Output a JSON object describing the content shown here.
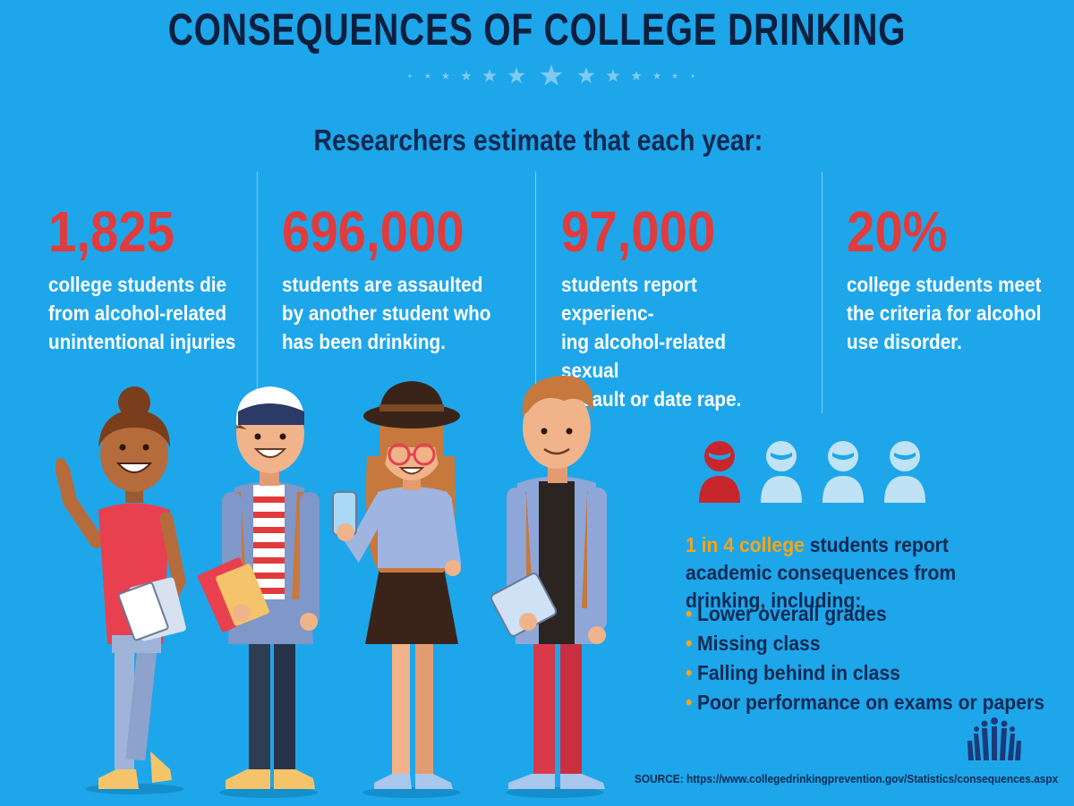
{
  "title": "CONSEQUENCES OF COLLEGE DRINKING",
  "subtitle": "Researchers estimate that each year:",
  "stats": [
    {
      "number": "1,825",
      "text": "college students die\nfrom alcohol-related\nunintentional injuries"
    },
    {
      "number": "696,000",
      "text": "students are assaulted\nby another student who\nhas been drinking."
    },
    {
      "number": "97,000",
      "text": "students report experienc-\ning alcohol-related sexual\nassault or date rape."
    },
    {
      "number": "20%",
      "text": "college students meet\nthe criteria for alcohol\nuse disorder."
    }
  ],
  "ratio": {
    "highlight": "1 in 4 college",
    "text": " students report academic consequences from drinking, including:",
    "icons": [
      "person-icon-affected",
      "person-icon",
      "person-icon",
      "person-icon"
    ]
  },
  "consequences": [
    "Lower overall grades",
    "Missing class",
    "Falling behind in class",
    "Poor performance on exams or papers"
  ],
  "bullet_glyph": "•",
  "source": "SOURCE: https://www.collegedrinkingprevention.gov/Statistics/consequences.aspx",
  "colors": {
    "background": "#1ea6ea",
    "title": "#0d1f3f",
    "stat_number": "#e23b3b",
    "highlight": "#f3a51b",
    "icon_affected": "#c8262d",
    "icon_default": "#bfe3f4"
  }
}
